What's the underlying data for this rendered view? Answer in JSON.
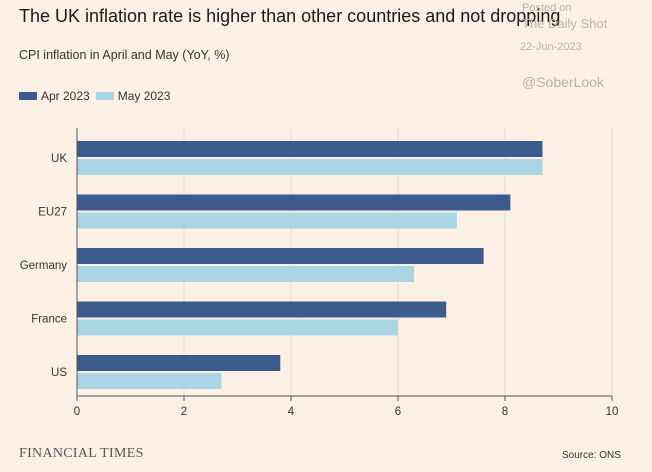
{
  "title": "The UK inflation rate is higher than other countries and not dropping",
  "subtitle": "CPI inflation in April and May (YoY, %)",
  "watermark": {
    "posted_on": "Posted on",
    "source_name": "The Daily Shot",
    "date": "22-Jun-2023",
    "handle": "@SoberLook"
  },
  "footer": {
    "brand": "FINANCIAL TIMES",
    "source": "Source: ONS"
  },
  "colors": {
    "background": "#fdf1e5",
    "apr": "#3b5b8c",
    "may": "#a9d5e5",
    "grid": "#e6d9cc",
    "axis": "#555555"
  },
  "chart_data": {
    "type": "bar",
    "orientation": "horizontal",
    "title": "The UK inflation rate is higher than other countries and not dropping",
    "subtitle": "CPI inflation in April and May (YoY, %)",
    "categories": [
      "UK",
      "EU27",
      "Germany",
      "France",
      "US"
    ],
    "series": [
      {
        "name": "Apr 2023",
        "values": [
          8.7,
          8.1,
          7.6,
          6.9,
          3.8
        ]
      },
      {
        "name": "May 2023",
        "values": [
          8.7,
          7.1,
          6.3,
          6.0,
          2.7
        ]
      }
    ],
    "xlim": [
      0,
      10
    ],
    "xticks": [
      0,
      2,
      4,
      6,
      8,
      10
    ],
    "xlabel": "",
    "ylabel": "",
    "grid": true,
    "legend": "top-left"
  }
}
